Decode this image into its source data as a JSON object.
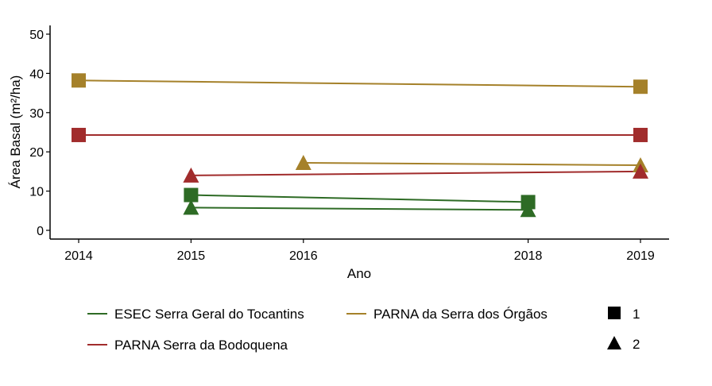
{
  "chart_data": {
    "type": "line",
    "xlabel": "Ano",
    "ylabel": "Área Basal (m²/ha)",
    "xlim": [
      2014,
      2019
    ],
    "ylim": [
      0,
      50
    ],
    "x_ticks": [
      2014,
      2015,
      2016,
      2018,
      2019
    ],
    "y_ticks": [
      0,
      10,
      20,
      30,
      40,
      50
    ],
    "grid": false,
    "legend_position": "bottom",
    "colors": {
      "ESEC Serra Geral do Tocantins": "#2e6b25",
      "PARNA da Serra dos Órgãos": "#a5812a",
      "PARNA Serra da Bodoquena": "#a12c2c"
    },
    "shapes": {
      "1": "square",
      "2": "triangle"
    },
    "series": [
      {
        "site": "ESEC Serra Geral do Tocantins",
        "plot": "1",
        "x": [
          2015,
          2018
        ],
        "y": [
          9,
          7.2
        ]
      },
      {
        "site": "ESEC Serra Geral do Tocantins",
        "plot": "2",
        "x": [
          2015,
          2018
        ],
        "y": [
          5.8,
          5.2
        ]
      },
      {
        "site": "PARNA da Serra dos Órgãos",
        "plot": "1",
        "x": [
          2014,
          2019
        ],
        "y": [
          38.2,
          36.6
        ]
      },
      {
        "site": "PARNA da Serra dos Órgãos",
        "plot": "2",
        "x": [
          2016,
          2019
        ],
        "y": [
          17.2,
          16.6
        ]
      },
      {
        "site": "PARNA Serra da Bodoquena",
        "plot": "1",
        "x": [
          2014,
          2019
        ],
        "y": [
          24.3,
          24.3
        ]
      },
      {
        "site": "PARNA Serra da Bodoquena",
        "plot": "2",
        "x": [
          2015,
          2019
        ],
        "y": [
          14,
          15
        ]
      }
    ],
    "legend": {
      "color_entries": [
        "ESEC Serra Geral do Tocantins",
        "PARNA da Serra dos Órgãos",
        "PARNA Serra da Bodoquena"
      ],
      "shape_entries": [
        "1",
        "2"
      ]
    }
  }
}
